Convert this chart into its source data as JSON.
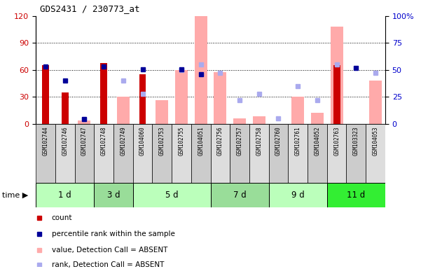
{
  "title": "GDS2431 / 230773_at",
  "samples": [
    "GSM102744",
    "GSM102746",
    "GSM102747",
    "GSM102748",
    "GSM102749",
    "GSM104060",
    "GSM102753",
    "GSM102755",
    "GSM104051",
    "GSM102756",
    "GSM102757",
    "GSM102758",
    "GSM102760",
    "GSM102761",
    "GSM104052",
    "GSM102763",
    "GSM103323",
    "GSM104053"
  ],
  "time_groups": [
    {
      "label": "1 d",
      "start": 0,
      "end": 2,
      "color": "#bbffbb"
    },
    {
      "label": "3 d",
      "start": 3,
      "end": 4,
      "color": "#99dd99"
    },
    {
      "label": "5 d",
      "start": 5,
      "end": 8,
      "color": "#bbffbb"
    },
    {
      "label": "7 d",
      "start": 9,
      "end": 11,
      "color": "#99dd99"
    },
    {
      "label": "9 d",
      "start": 12,
      "end": 14,
      "color": "#bbffbb"
    },
    {
      "label": "11 d",
      "start": 15,
      "end": 17,
      "color": "#33ee33"
    }
  ],
  "count_values": [
    65,
    35,
    0,
    68,
    0,
    55,
    0,
    0,
    0,
    0,
    0,
    0,
    0,
    0,
    0,
    65,
    0,
    0
  ],
  "percentile_rank_values": [
    64,
    48,
    5,
    64,
    null,
    61,
    null,
    61,
    55,
    null,
    null,
    null,
    null,
    null,
    null,
    null,
    62,
    null
  ],
  "absent_value_bars": [
    null,
    null,
    3,
    null,
    25,
    null,
    22,
    50,
    100,
    48,
    5,
    7,
    null,
    25,
    10,
    90,
    null,
    40
  ],
  "absent_rank_dots": [
    null,
    null,
    4,
    null,
    40,
    28,
    null,
    50,
    55,
    47,
    22,
    28,
    5,
    35,
    22,
    55,
    null,
    47
  ],
  "left_ylim": [
    0,
    120
  ],
  "left_yticks": [
    0,
    30,
    60,
    90,
    120
  ],
  "right_ylim": [
    0,
    100
  ],
  "right_yticks": [
    0,
    25,
    50,
    75,
    100
  ],
  "right_ylabel_color": "#0000cc",
  "count_color": "#cc0000",
  "percentile_color": "#000099",
  "absent_value_color": "#ffaaaa",
  "absent_rank_color": "#aaaaee",
  "grid_color": "#000000",
  "bg_color": "#ffffff",
  "sample_bg_color": "#dddddd",
  "legend_items": [
    {
      "label": "count",
      "color": "#cc0000"
    },
    {
      "label": "percentile rank within the sample",
      "color": "#000099"
    },
    {
      "label": "value, Detection Call = ABSENT",
      "color": "#ffaaaa"
    },
    {
      "label": "rank, Detection Call = ABSENT",
      "color": "#aaaaee"
    }
  ]
}
